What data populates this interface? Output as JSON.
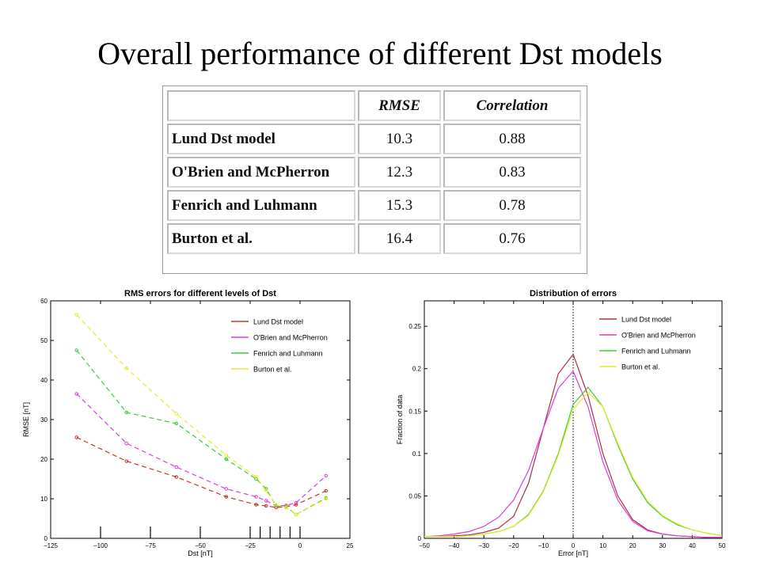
{
  "slide": {
    "title": "Overall performance of different Dst models"
  },
  "table": {
    "headers": [
      "",
      "RMSE",
      "Correlation"
    ],
    "rows": [
      {
        "name": "Lund Dst model",
        "rmse": "10.3",
        "corr": "0.88"
      },
      {
        "name": "O'Brien and McPherron",
        "rmse": "12.3",
        "corr": "0.83"
      },
      {
        "name": "Fenrich and Luhmann",
        "rmse": "15.3",
        "corr": "0.78"
      },
      {
        "name": "Burton et al.",
        "rmse": "16.4",
        "corr": "0.76"
      }
    ]
  },
  "chart_data": [
    {
      "type": "line",
      "title": "RMS errors for different levels of Dst",
      "xlabel": "Dst  [nT]",
      "ylabel": "RMSE  [nT]",
      "xlim": [
        -125,
        25
      ],
      "ylim": [
        0,
        60
      ],
      "xticks": [
        "−125",
        "−100",
        "−75",
        "−50",
        "−25",
        "0",
        "25"
      ],
      "xtick_values": [
        -125,
        -100,
        -75,
        -50,
        -25,
        0,
        25
      ],
      "yticks": [
        "0",
        "10",
        "20",
        "30",
        "40",
        "50",
        "60"
      ],
      "ytick_values": [
        0,
        10,
        20,
        30,
        40,
        50,
        60
      ],
      "grid": false,
      "legend": "top-right",
      "line_style": "dashed",
      "bin_markers": [
        -100,
        -75,
        -50,
        -25,
        -20,
        -15,
        -10,
        -5,
        0
      ],
      "x": [
        -112,
        -87,
        -62,
        -37,
        -22,
        -17,
        -12,
        -7,
        -2,
        13
      ],
      "series": [
        {
          "name": "Lund Dst model",
          "color": "#c0392b",
          "values": [
            25.5,
            19.5,
            15.5,
            10.5,
            8.5,
            8.2,
            7.8,
            8.0,
            8.5,
            12.0
          ]
        },
        {
          "name": "O'Brien and McPherron",
          "color": "#d83fd8",
          "values": [
            36.5,
            24.0,
            18.0,
            12.5,
            10.5,
            9.5,
            8.2,
            8.3,
            9.0,
            15.8
          ]
        },
        {
          "name": "Fenrich and Luhmann",
          "color": "#3fc83f",
          "values": [
            47.5,
            31.8,
            29.0,
            20.0,
            15.0,
            12.5,
            8.2,
            8.0,
            6.0,
            10.2
          ]
        },
        {
          "name": "Burton et al.",
          "color": "#e8e830",
          "values": [
            56.5,
            43.0,
            31.5,
            21.0,
            15.5,
            12.0,
            8.5,
            7.8,
            6.0,
            10.0
          ]
        }
      ]
    },
    {
      "type": "line",
      "title": "Distribution of errors",
      "xlabel": "Error  [nT]",
      "ylabel": "Fraction of data",
      "xlim": [
        -50,
        50
      ],
      "ylim": [
        0,
        0.28
      ],
      "xticks": [
        "−50",
        "−40",
        "−30",
        "−20",
        "−10",
        "0",
        "10",
        "20",
        "30",
        "40",
        "50"
      ],
      "xtick_values": [
        -50,
        -40,
        -30,
        -20,
        -10,
        0,
        10,
        20,
        30,
        40,
        50
      ],
      "yticks": [
        "0",
        "0.05",
        "0.1",
        "0.15",
        "0.2",
        "0.25"
      ],
      "ytick_values": [
        0,
        0.05,
        0.1,
        0.15,
        0.2,
        0.25
      ],
      "grid": false,
      "legend": "top-right",
      "vertical_reference_x": 0,
      "x": [
        -50,
        -45,
        -40,
        -35,
        -30,
        -25,
        -20,
        -15,
        -10,
        -5,
        0,
        5,
        10,
        15,
        20,
        25,
        30,
        35,
        40,
        45,
        50
      ],
      "series": [
        {
          "name": "Lund Dst model",
          "color": "#b03040",
          "values": [
            0.002,
            0.002,
            0.003,
            0.004,
            0.007,
            0.012,
            0.026,
            0.065,
            0.13,
            0.194,
            0.217,
            0.168,
            0.1,
            0.05,
            0.022,
            0.01,
            0.005,
            0.003,
            0.002,
            0.001,
            0.001
          ]
        },
        {
          "name": "O'Brien and McPherron",
          "color": "#d83fd8",
          "values": [
            0.002,
            0.003,
            0.005,
            0.008,
            0.014,
            0.025,
            0.045,
            0.08,
            0.13,
            0.177,
            0.197,
            0.155,
            0.09,
            0.045,
            0.02,
            0.009,
            0.005,
            0.003,
            0.002,
            0.001,
            0.001
          ]
        },
        {
          "name": "Fenrich and Luhmann",
          "color": "#3fc83f",
          "values": [
            0.002,
            0.002,
            0.002,
            0.003,
            0.005,
            0.008,
            0.014,
            0.028,
            0.056,
            0.1,
            0.158,
            0.178,
            0.155,
            0.11,
            0.07,
            0.042,
            0.026,
            0.016,
            0.01,
            0.006,
            0.003
          ]
        },
        {
          "name": "Burton et al.",
          "color": "#e8e830",
          "values": [
            0.002,
            0.002,
            0.002,
            0.003,
            0.005,
            0.008,
            0.014,
            0.027,
            0.055,
            0.098,
            0.152,
            0.172,
            0.155,
            0.112,
            0.072,
            0.044,
            0.027,
            0.017,
            0.01,
            0.006,
            0.003
          ]
        }
      ]
    }
  ]
}
